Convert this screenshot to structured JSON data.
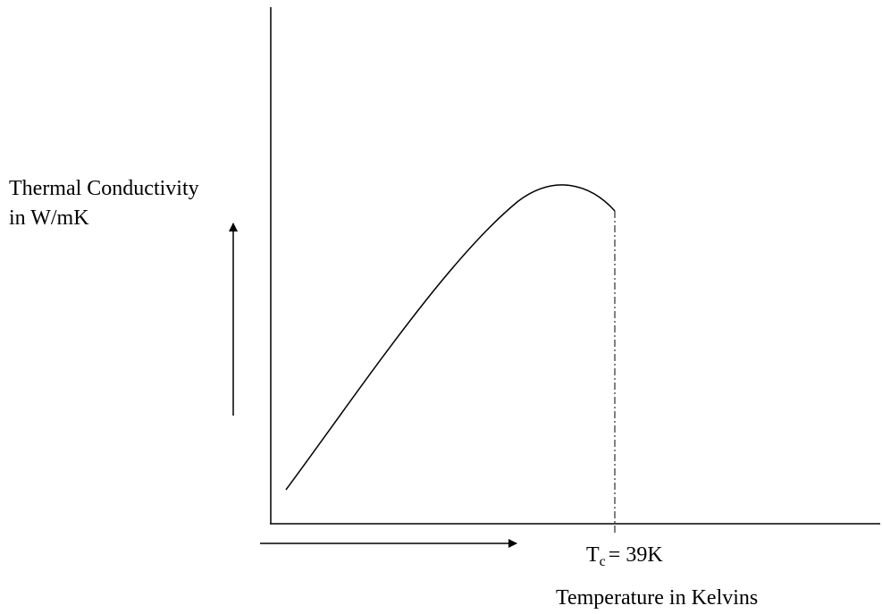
{
  "y_axis_label": {
    "line1": "Thermal Conductivity",
    "line2": "in W/mK"
  },
  "x_axis_label": "Temperature in Kelvins",
  "critical_temperature": {
    "symbol": "T",
    "subscript": "c",
    "text": "= 39K"
  }
}
